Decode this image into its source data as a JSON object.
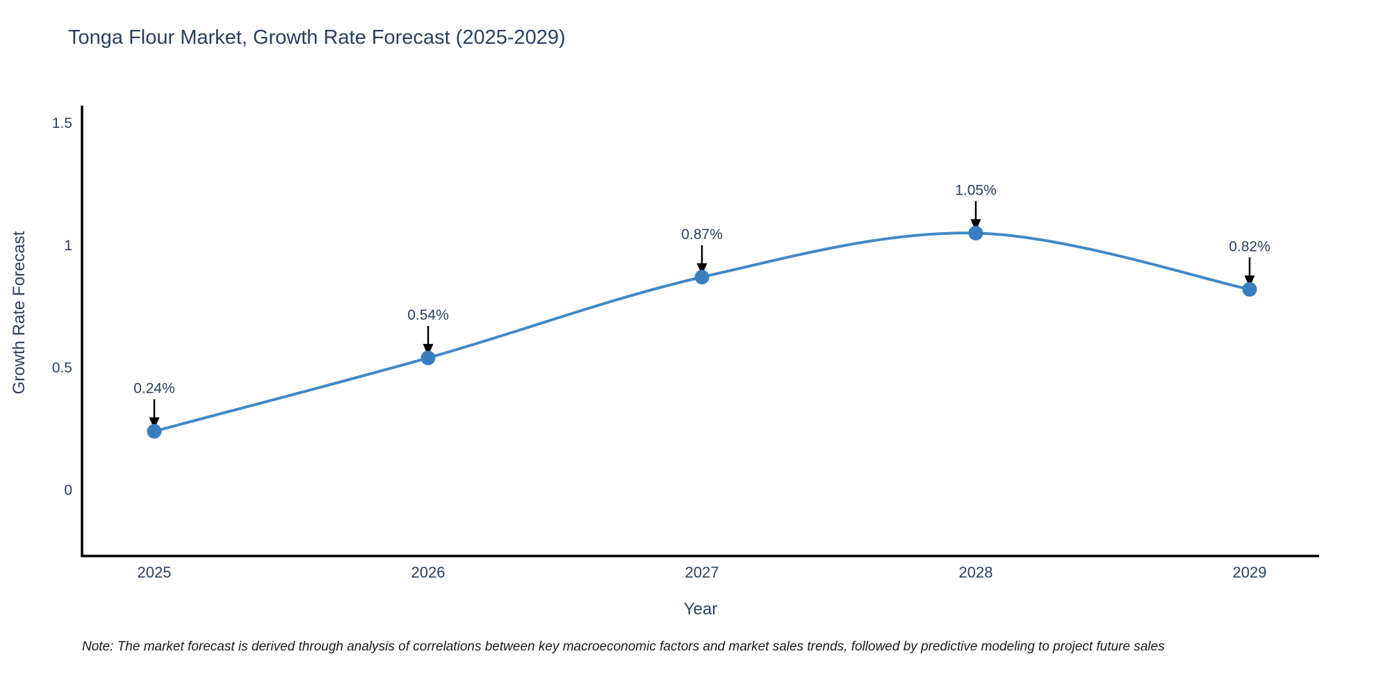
{
  "note": "Note: The market forecast is derived through analysis of correlations between key macroeconomic factors and market sales trends, followed by predictive modeling to project future sales",
  "chart_data": {
    "type": "line",
    "title": "Tonga Flour Market, Growth Rate Forecast (2025-2029)",
    "xlabel": "Year",
    "ylabel": "Growth Rate Forecast",
    "categories": [
      "2025",
      "2026",
      "2027",
      "2028",
      "2029"
    ],
    "values": [
      0.24,
      0.54,
      0.87,
      1.05,
      0.82
    ],
    "point_labels": [
      "0.24%",
      "0.54%",
      "0.87%",
      "1.05%",
      "0.82%"
    ],
    "yticks": [
      0,
      0.5,
      1,
      1.5
    ],
    "ytick_labels": [
      "0",
      "0.5",
      "1",
      "1.5"
    ],
    "ylim": [
      -0.27,
      1.55
    ],
    "grid": false,
    "smooth": true,
    "legend": "none",
    "annotation_style": "value label with down arrow to marker",
    "colors": {
      "line": "#4288c5",
      "marker": "#3a7ebf",
      "arrow": "#000000",
      "axis": "#000000",
      "text": "#2a3f5f",
      "note_text": "#1a1a1a",
      "background": "#ffffff"
    }
  }
}
